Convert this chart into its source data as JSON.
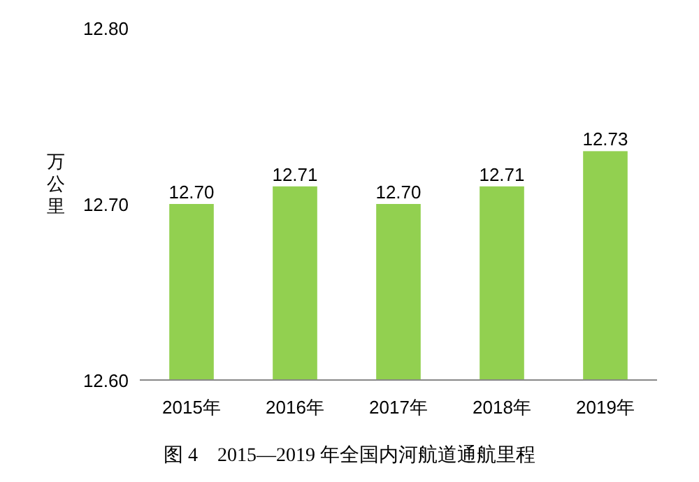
{
  "chart_data": {
    "type": "bar",
    "title": "图 4　2015—2019 年全国内河航道通航里程",
    "ylabel": "万公里",
    "categories": [
      "2015年",
      "2016年",
      "2017年",
      "2018年",
      "2019年"
    ],
    "values": [
      12.7,
      12.71,
      12.7,
      12.71,
      12.73
    ],
    "color": "#92d050",
    "ylim": [
      12.6,
      12.8
    ],
    "yticks": [
      {
        "value": 12.6,
        "label": "12.60"
      },
      {
        "value": 12.7,
        "label": "12.70"
      },
      {
        "value": 12.8,
        "label": "12.80"
      }
    ],
    "value_labels": [
      "12.70",
      "12.71",
      "12.70",
      "12.71",
      "12.73"
    ]
  }
}
